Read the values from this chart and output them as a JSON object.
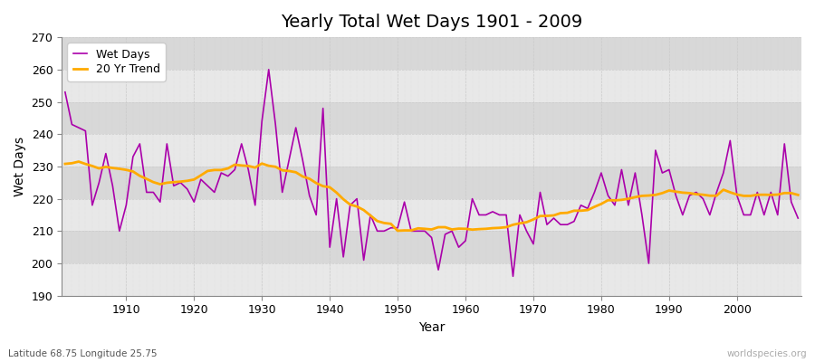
{
  "title": "Yearly Total Wet Days 1901 - 2009",
  "xlabel": "Year",
  "ylabel": "Wet Days",
  "subtitle": "Latitude 68.75 Longitude 25.75",
  "watermark": "worldspecies.org",
  "years": [
    1901,
    1902,
    1903,
    1904,
    1905,
    1906,
    1907,
    1908,
    1909,
    1910,
    1911,
    1912,
    1913,
    1914,
    1915,
    1916,
    1917,
    1918,
    1919,
    1920,
    1921,
    1922,
    1923,
    1924,
    1925,
    1926,
    1927,
    1928,
    1929,
    1930,
    1931,
    1932,
    1933,
    1934,
    1935,
    1936,
    1937,
    1938,
    1939,
    1940,
    1941,
    1942,
    1943,
    1944,
    1945,
    1946,
    1947,
    1948,
    1949,
    1950,
    1951,
    1952,
    1953,
    1954,
    1955,
    1956,
    1957,
    1958,
    1959,
    1960,
    1961,
    1962,
    1963,
    1964,
    1965,
    1966,
    1967,
    1968,
    1969,
    1970,
    1971,
    1972,
    1973,
    1974,
    1975,
    1976,
    1977,
    1978,
    1979,
    1980,
    1981,
    1982,
    1983,
    1984,
    1985,
    1986,
    1987,
    1988,
    1989,
    1990,
    1991,
    1992,
    1993,
    1994,
    1995,
    1996,
    1997,
    1998,
    1999,
    2000,
    2001,
    2002,
    2003,
    2004,
    2005,
    2006,
    2007,
    2008,
    2009
  ],
  "wet_days": [
    253,
    243,
    242,
    241,
    218,
    225,
    234,
    224,
    210,
    218,
    233,
    237,
    222,
    222,
    219,
    237,
    224,
    225,
    223,
    219,
    226,
    224,
    222,
    228,
    227,
    229,
    237,
    229,
    218,
    244,
    260,
    243,
    222,
    232,
    242,
    232,
    221,
    215,
    248,
    205,
    220,
    202,
    218,
    220,
    201,
    215,
    210,
    210,
    211,
    211,
    219,
    210,
    210,
    210,
    208,
    198,
    209,
    210,
    205,
    207,
    220,
    215,
    215,
    216,
    215,
    215,
    196,
    215,
    210,
    206,
    222,
    212,
    214,
    212,
    212,
    213,
    218,
    217,
    222,
    228,
    221,
    218,
    229,
    218,
    228,
    215,
    200,
    235,
    228,
    229,
    221,
    215,
    221,
    222,
    220,
    215,
    222,
    228,
    238,
    221,
    215,
    215,
    222,
    215,
    222,
    215,
    237,
    219,
    214
  ],
  "wet_days_color": "#aa00aa",
  "trend_color": "#ffaa00",
  "fig_bg_color": "#ffffff",
  "plot_bg_color_light": "#e8e8e8",
  "plot_bg_color_dark": "#d8d8d8",
  "grid_color": "#cccccc",
  "ylim": [
    190,
    270
  ],
  "yticks": [
    190,
    200,
    210,
    220,
    230,
    240,
    250,
    260,
    270
  ],
  "xlim_start": 1901,
  "xlim_end": 2009,
  "title_fontsize": 14,
  "axis_label_fontsize": 10,
  "tick_fontsize": 9,
  "legend_fontsize": 9
}
